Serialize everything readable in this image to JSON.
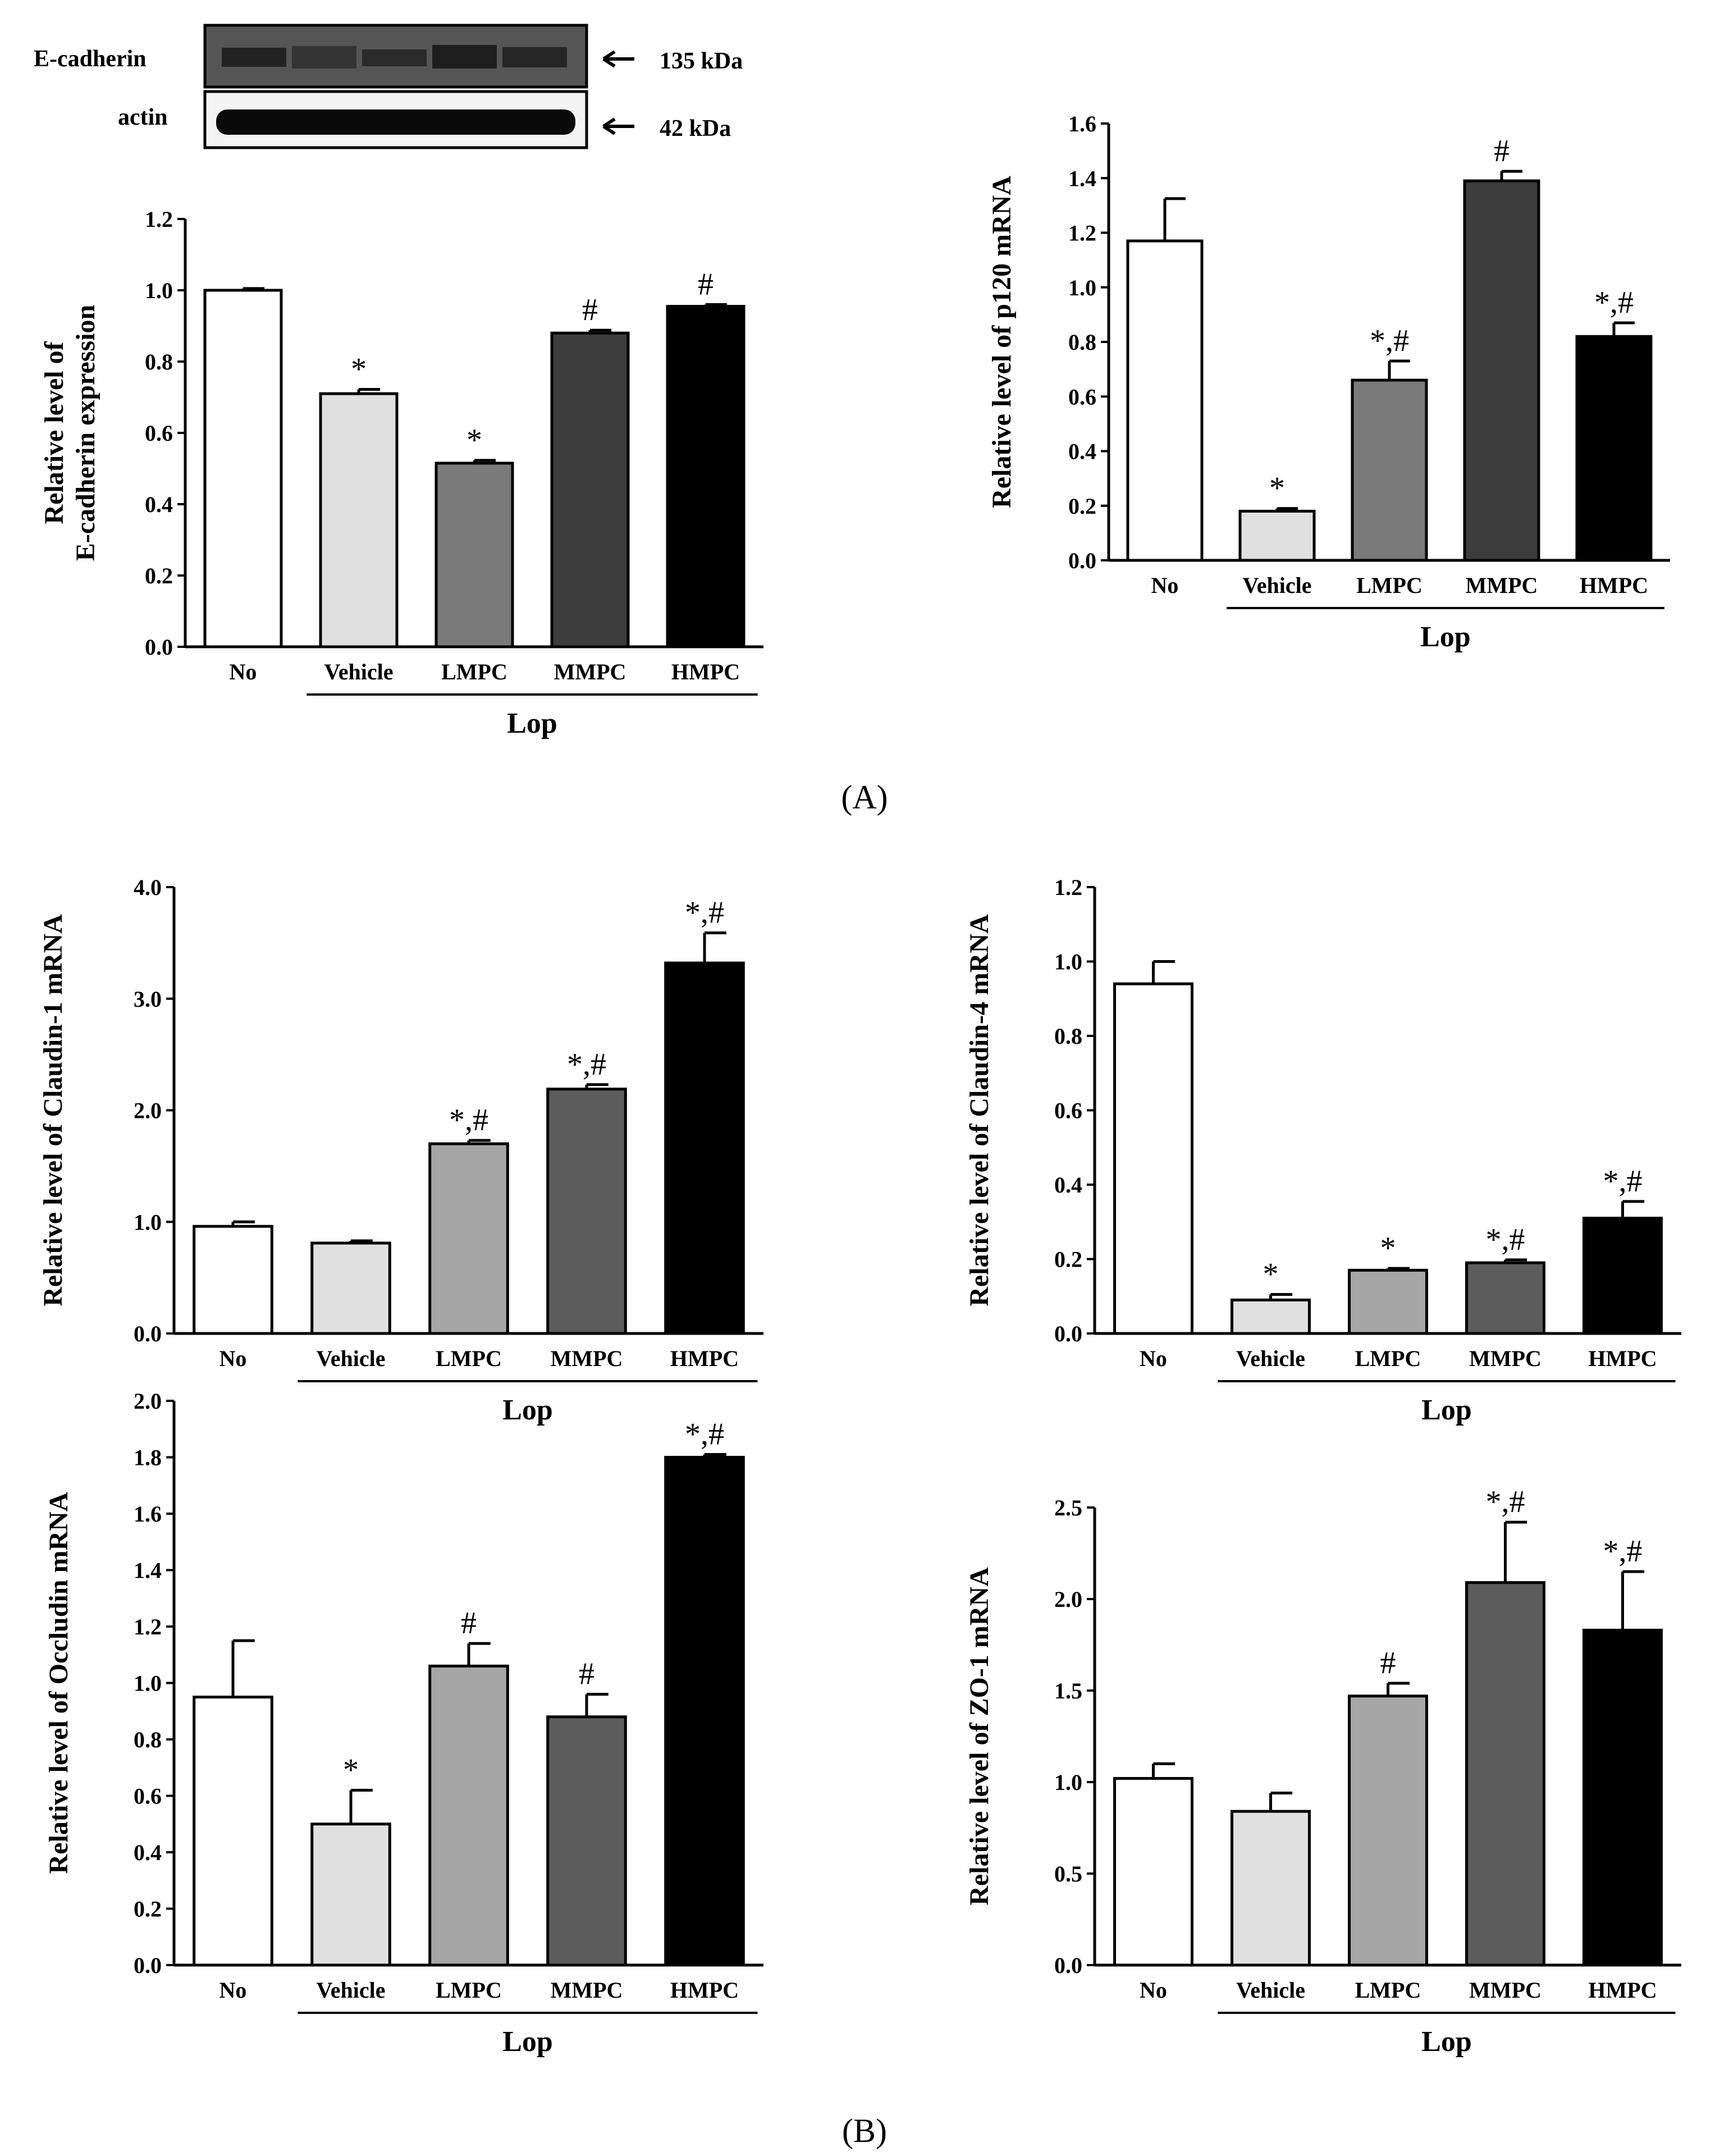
{
  "panel_labels": [
    "(A)",
    "(B)"
  ],
  "western_blot": {
    "rows": [
      {
        "protein": "E-cadherin",
        "size": "135 kDa"
      },
      {
        "protein": "actin",
        "size": "42 kDa"
      }
    ]
  },
  "colors": {
    "No": "#ffffff",
    "Vehicle": "#e0e0e0",
    "LMPC_A": "#7a7a7a",
    "MMPC_A": "#3c3c3c",
    "HMPC": "#000000",
    "LMPC_B": "#a6a6a6",
    "MMPC_B": "#5c5c5c"
  },
  "chart_data": [
    {
      "type": "bar",
      "id": "ecadherin",
      "categories": [
        "No",
        "Vehicle",
        "LMPC",
        "MMPC",
        "HMPC"
      ],
      "group_label": "Lop",
      "ylabel": [
        "Relative level of",
        "E-cadherin expression"
      ],
      "ylim": [
        0,
        1.2
      ],
      "yticks": [
        "0.0",
        "0.2",
        "0.4",
        "0.6",
        "0.8",
        "1.0",
        "1.2"
      ],
      "values": [
        1.0,
        0.71,
        0.515,
        0.88,
        0.955
      ],
      "errors": [
        0.005,
        0.012,
        0.008,
        0.008,
        0.005
      ],
      "markers": [
        "",
        "*",
        "*",
        "#",
        "#"
      ]
    },
    {
      "type": "bar",
      "id": "p120",
      "categories": [
        "No",
        "Vehicle",
        "LMPC",
        "MMPC",
        "HMPC"
      ],
      "group_label": "Lop",
      "ylabel": [
        "Relative level of p120 mRNA"
      ],
      "ylim": [
        0,
        1.6
      ],
      "yticks": [
        "0.0",
        "0.2",
        "0.4",
        "0.6",
        "0.8",
        "1.0",
        "1.2",
        "1.4",
        "1.6"
      ],
      "values": [
        1.17,
        0.18,
        0.66,
        1.39,
        0.82
      ],
      "errors": [
        0.155,
        0.01,
        0.07,
        0.035,
        0.05
      ],
      "markers": [
        "",
        "*",
        "*,#",
        "#",
        "*,#"
      ]
    },
    {
      "type": "bar",
      "id": "claudin1",
      "categories": [
        "No",
        "Vehicle",
        "LMPC",
        "MMPC",
        "HMPC"
      ],
      "group_label": "Lop",
      "ylabel": [
        "Relative level of Claudin-1 mRNA"
      ],
      "ylim": [
        0,
        4.0
      ],
      "yticks": [
        "0.0",
        "1.0",
        "2.0",
        "3.0",
        "4.0"
      ],
      "values": [
        0.96,
        0.81,
        1.7,
        2.19,
        3.32
      ],
      "errors": [
        0.04,
        0.02,
        0.03,
        0.04,
        0.27
      ],
      "markers": [
        "",
        "",
        "*,#",
        "*,#",
        "*,#"
      ]
    },
    {
      "type": "bar",
      "id": "claudin4",
      "categories": [
        "No",
        "Vehicle",
        "LMPC",
        "MMPC",
        "HMPC"
      ],
      "group_label": "Lop",
      "ylabel": [
        "Relative level of Claudin-4 mRNA"
      ],
      "ylim": [
        0,
        1.2
      ],
      "yticks": [
        "0.0",
        "0.2",
        "0.4",
        "0.6",
        "0.8",
        "1.0",
        "1.2"
      ],
      "values": [
        0.94,
        0.09,
        0.17,
        0.19,
        0.31
      ],
      "errors": [
        0.06,
        0.015,
        0.005,
        0.008,
        0.045
      ],
      "markers": [
        "",
        "*",
        "*",
        "*,#",
        "*,#"
      ]
    },
    {
      "type": "bar",
      "id": "occludin",
      "categories": [
        "No",
        "Vehicle",
        "LMPC",
        "MMPC",
        "HMPC"
      ],
      "group_label": "Lop",
      "ylabel": [
        "Relative level of Occludin mRNA"
      ],
      "ylim": [
        0,
        2.0
      ],
      "yticks": [
        "0.0",
        "0.2",
        "0.4",
        "0.6",
        "0.8",
        "1.0",
        "1.2",
        "1.4",
        "1.6",
        "1.8",
        "2.0"
      ],
      "values": [
        0.95,
        0.5,
        1.06,
        0.88,
        1.8
      ],
      "errors": [
        0.2,
        0.12,
        0.08,
        0.08,
        0.01
      ],
      "markers": [
        "",
        "*",
        "#",
        "#",
        "*,#"
      ]
    },
    {
      "type": "bar",
      "id": "zo1",
      "categories": [
        "No",
        "Vehicle",
        "LMPC",
        "MMPC",
        "HMPC"
      ],
      "group_label": "Lop",
      "ylabel": [
        "Relative level of ZO-1 mRNA"
      ],
      "ylim": [
        0,
        2.5
      ],
      "yticks": [
        "0.0",
        "0.5",
        "1.0",
        "1.5",
        "2.0",
        "2.5"
      ],
      "values": [
        1.02,
        0.84,
        1.47,
        2.09,
        1.83
      ],
      "errors": [
        0.08,
        0.1,
        0.07,
        0.33,
        0.32
      ],
      "markers": [
        "",
        "",
        "#",
        "*,#",
        "*,#"
      ]
    }
  ]
}
